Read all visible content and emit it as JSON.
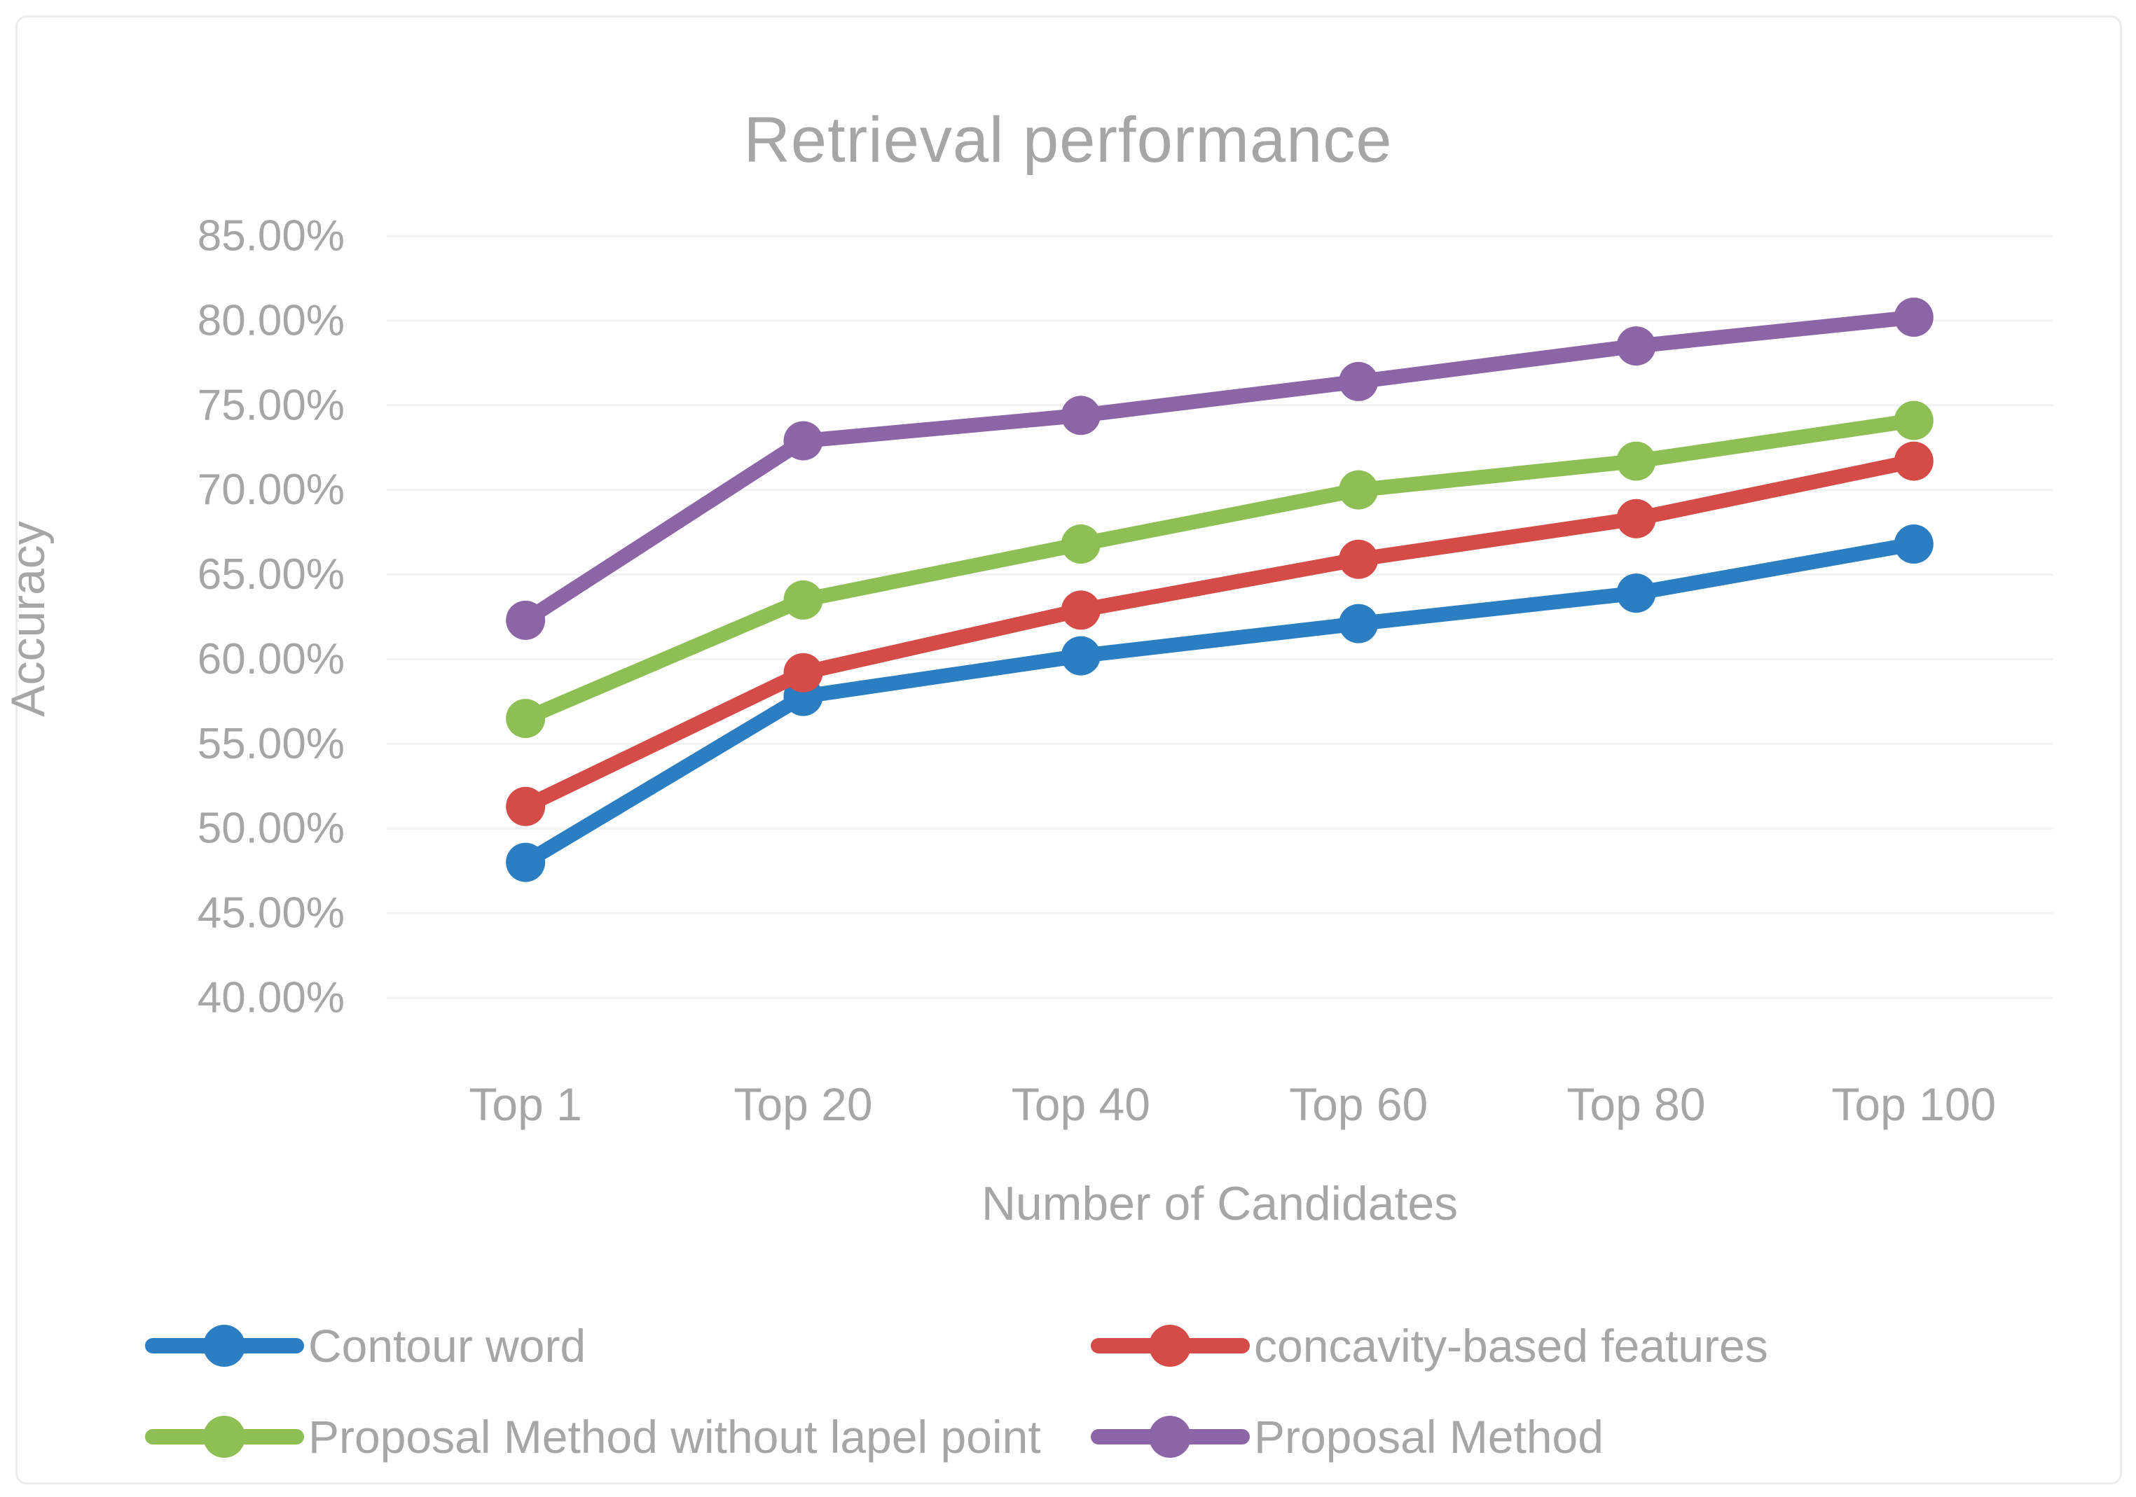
{
  "title": "Retrieval performance",
  "axes": {
    "x_title": "Number of Candidates",
    "y_title": "Accuracy",
    "y_tick_labels": [
      "85.00%",
      "80.00%",
      "75.00%",
      "70.00%",
      "65.00%",
      "60.00%",
      "55.00%",
      "50.00%",
      "45.00%",
      "40.00%"
    ],
    "x_tick_labels": [
      "Top 1",
      "Top 20",
      "Top 40",
      "Top 60",
      "Top 80",
      "Top 100"
    ]
  },
  "colors": {
    "text_gray": "#a6a6a6",
    "gridline": "#f2f2f2",
    "card_border": "#ececec",
    "series_blue": "#2a7ec1",
    "series_red": "#d44b48",
    "series_green": "#8dbf55",
    "series_purple": "#8c65a6"
  },
  "legend": {
    "rows": 2,
    "items": [
      {
        "label": "Contour word",
        "color": "#2a7ec1"
      },
      {
        "label": "concavity-based features",
        "color": "#d44b48"
      },
      {
        "label": "Proposal Method without lapel point",
        "color": "#8dbf55"
      },
      {
        "label": "Proposal Method",
        "color": "#8c65a6"
      }
    ]
  },
  "chart_data": {
    "type": "line",
    "title": "Retrieval performance",
    "xlabel": "Number of Candidates",
    "ylabel": "Accuracy",
    "categories": [
      "Top 1",
      "Top 20",
      "Top 40",
      "Top 60",
      "Top 80",
      "Top 100"
    ],
    "ylim": [
      40,
      85
    ],
    "ytick_step": 5,
    "ytick_format": "percent_2dp",
    "grid": true,
    "legend_position": "bottom",
    "marker": "circle",
    "series": [
      {
        "name": "Contour word",
        "color": "#2a7ec1",
        "values": [
          48.0,
          57.8,
          60.2,
          62.1,
          63.9,
          66.8
        ]
      },
      {
        "name": "concavity-based features",
        "color": "#d44b48",
        "values": [
          51.3,
          59.2,
          62.9,
          65.9,
          68.3,
          71.7
        ]
      },
      {
        "name": "Proposal Method without lapel point",
        "color": "#8dbf55",
        "values": [
          56.5,
          63.5,
          66.8,
          70.0,
          71.7,
          74.1
        ]
      },
      {
        "name": "Proposal Method",
        "color": "#8c65a6",
        "values": [
          62.3,
          72.9,
          74.4,
          76.4,
          78.5,
          80.2
        ]
      }
    ]
  }
}
